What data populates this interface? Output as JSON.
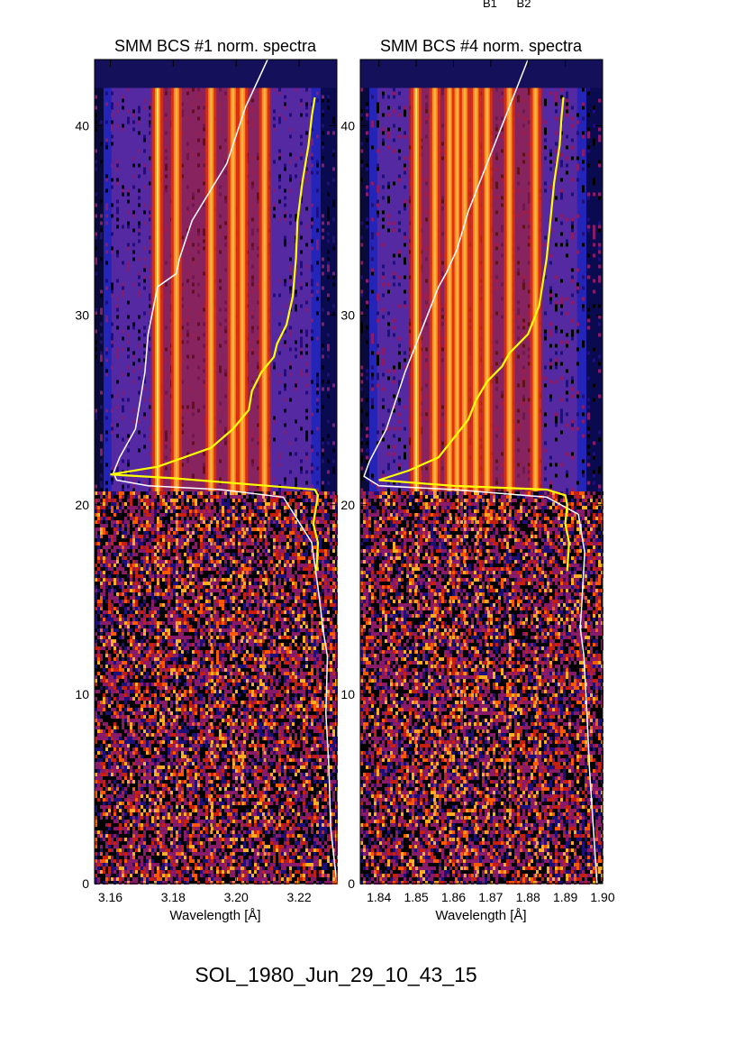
{
  "header_labels": [
    "B1",
    "B2"
  ],
  "footer": {
    "event_id": "SOL_1980_Jun_29_10_43_15"
  },
  "chart_data": [
    {
      "type": "heatmap",
      "title": "SMM BCS #1 norm. spectra",
      "xlabel": "Wavelength [Å]",
      "ylabel": "",
      "xlim": [
        3.155,
        3.232
      ],
      "ylim": [
        0,
        43.5
      ],
      "xticks": [
        3.16,
        3.18,
        3.2,
        3.22
      ],
      "xtick_labels": [
        "3.16",
        "3.18",
        "3.20",
        "3.22"
      ],
      "yticks": [
        0,
        10,
        20,
        30,
        40
      ],
      "ytick_labels": [
        "0",
        "10",
        "20",
        "30",
        "40"
      ],
      "colormap": [
        "#000000",
        "#1f0f7a",
        "#2a2ad8",
        "#8a1a6a",
        "#c81f10",
        "#ff5a00",
        "#ffb020",
        "#ffe868"
      ],
      "spectral_lines_angstrom": [
        3.175,
        3.181,
        3.192,
        3.199,
        3.202,
        3.209
      ],
      "noise_band_rows": [
        0,
        20.7
      ],
      "signal_band_rows": [
        20.7,
        42
      ],
      "series": [
        {
          "color": "#ffffff",
          "x": [
            3.233,
            3.23,
            3.2295,
            3.2285,
            3.229,
            3.2275,
            3.2265,
            3.224,
            3.215,
            3.195,
            3.172,
            3.162,
            3.161,
            3.163,
            3.168,
            3.171,
            3.172,
            3.175,
            3.181,
            3.182,
            3.186,
            3.197,
            3.203,
            3.21
          ],
          "y": [
            0,
            3,
            6,
            9,
            12,
            13.5,
            15,
            18,
            20.4,
            20.8,
            21.0,
            21.3,
            21.7,
            22.5,
            24,
            27,
            29,
            31.5,
            32.2,
            33,
            35,
            38,
            41,
            43.5
          ]
        },
        {
          "color": "#ffff00",
          "x": [
            3.2255,
            3.226,
            3.2245,
            3.2255,
            3.226,
            3.225,
            3.21,
            3.18,
            3.16,
            3.175,
            3.192,
            3.199,
            3.204,
            3.205,
            3.208,
            3.212,
            3.213,
            3.216,
            3.218,
            3.219,
            3.2195,
            3.221,
            3.223,
            3.224,
            3.225
          ],
          "y": [
            16.5,
            18,
            19,
            20,
            20.5,
            20.8,
            21.0,
            21.4,
            21.6,
            22.0,
            23.0,
            24.0,
            25.0,
            26.0,
            27.0,
            27.8,
            28.5,
            29.5,
            31,
            33,
            35,
            37,
            39,
            40.5,
            41.5
          ]
        }
      ]
    },
    {
      "type": "heatmap",
      "title": "SMM BCS #4 norm. spectra",
      "xlabel": "Wavelength [Å]",
      "ylabel": "",
      "xlim": [
        1.835,
        1.9
      ],
      "ylim": [
        0,
        43.5
      ],
      "xticks": [
        1.84,
        1.85,
        1.86,
        1.87,
        1.88,
        1.89,
        1.9
      ],
      "xtick_labels": [
        "1.84",
        "1.85",
        "1.86",
        "1.87",
        "1.88",
        "1.89",
        "1.90"
      ],
      "yticks": [
        0,
        10,
        20,
        30,
        40
      ],
      "ytick_labels": [
        "0",
        "10",
        "20",
        "30",
        "40"
      ],
      "colormap": [
        "#000000",
        "#1f0f7a",
        "#2a2ad8",
        "#8a1a6a",
        "#c81f10",
        "#ff5a00",
        "#ffb020",
        "#ffe868"
      ],
      "spectral_lines_angstrom": [
        1.85,
        1.855,
        1.859,
        1.861,
        1.863,
        1.866,
        1.869,
        1.875,
        1.882
      ],
      "noise_band_rows": [
        0,
        20.7
      ],
      "signal_band_rows": [
        20.7,
        42
      ],
      "series": [
        {
          "color": "#ffffff",
          "x": [
            1.8985,
            1.8975,
            1.8965,
            1.8958,
            1.895,
            1.894,
            1.8945,
            1.8952,
            1.8935,
            1.885,
            1.86,
            1.84,
            1.836,
            1.8375,
            1.842,
            1.847,
            1.852,
            1.856,
            1.858,
            1.861,
            1.864,
            1.87,
            1.875,
            1.88
          ],
          "y": [
            0,
            3,
            6,
            9,
            12,
            13.5,
            15,
            17.5,
            19.5,
            20.4,
            20.8,
            21.0,
            21.5,
            22.3,
            24,
            27,
            29.5,
            31.5,
            32.2,
            33.5,
            35.5,
            38.5,
            41,
            43.5
          ]
        },
        {
          "color": "#ffff00",
          "x": [
            1.8905,
            1.891,
            1.89,
            1.8905,
            1.89,
            1.885,
            1.86,
            1.84,
            1.848,
            1.856,
            1.86,
            1.864,
            1.866,
            1.869,
            1.873,
            1.875,
            1.88,
            1.883,
            1.885,
            1.886,
            1.887,
            1.8885,
            1.889,
            1.8895
          ],
          "y": [
            16.5,
            18,
            19,
            20,
            20.5,
            20.8,
            21.0,
            21.3,
            21.8,
            22.5,
            23.5,
            24.5,
            25.5,
            26.5,
            27.3,
            28,
            29,
            30.5,
            33,
            35,
            37,
            39,
            40.5,
            41.5
          ]
        }
      ]
    }
  ]
}
